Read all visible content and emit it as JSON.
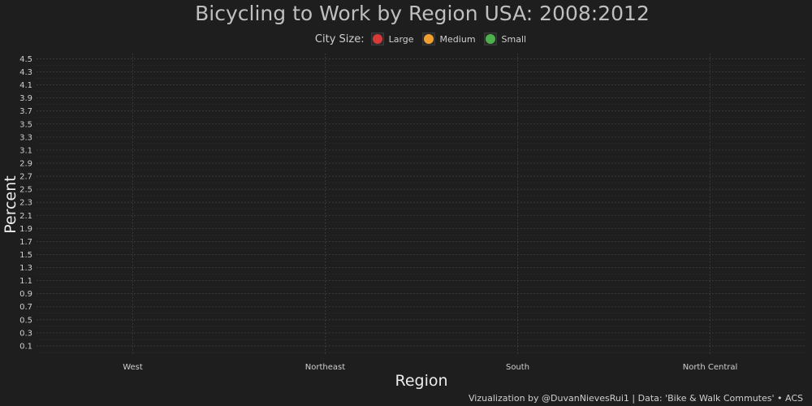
{
  "chart_data": {
    "type": "scatter",
    "title": "Bicycling to Work by Region USA: 2008:2012",
    "xlabel": "Region",
    "ylabel": "Percent",
    "categories": [
      "West",
      "Northeast",
      "South",
      "North Central"
    ],
    "y_ticks": [
      "0.1",
      "0.3",
      "0.5",
      "0.7",
      "0.9",
      "1.1",
      "1.3",
      "1.5",
      "1.7",
      "1.9",
      "2.1",
      "2.3",
      "2.5",
      "2.7",
      "2.9",
      "3.1",
      "3.3",
      "3.5",
      "3.7",
      "3.9",
      "4.1",
      "4.3",
      "4.5"
    ],
    "ylim": [
      -0.05,
      4.58
    ],
    "legend": {
      "title": "City Size:",
      "placement": "top",
      "entries": [
        {
          "label": "Large",
          "color": "#d63a3a"
        },
        {
          "label": "Medium",
          "color": "#f0a030"
        },
        {
          "label": "Small",
          "color": "#4cb04c"
        }
      ]
    },
    "series": [],
    "grid": true,
    "caption": "Vizualization by @DuvanNievesRui1 | Data: 'Bike & Walk Commutes' • ACS"
  },
  "colors": {
    "background": "#1e1e1e",
    "grid": "#4a4a4a",
    "text": "#cfcfcf"
  }
}
